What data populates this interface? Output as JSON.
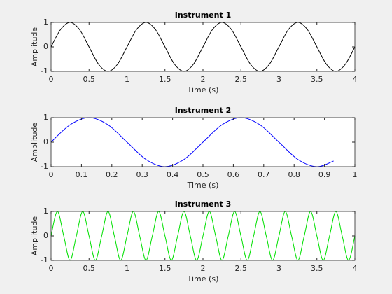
{
  "chart_data": [
    {
      "type": "line",
      "title": "Instrument 1",
      "xlabel": "Time (s)",
      "ylabel": "Amplitude",
      "color": "#000000",
      "x": [
        0,
        0.125,
        0.25,
        0.375,
        0.5,
        0.625,
        0.75,
        0.875,
        1,
        1.125,
        1.25,
        1.375,
        1.5,
        1.625,
        1.75,
        1.875,
        2,
        2.125,
        2.25,
        2.375,
        2.5,
        2.625,
        2.75,
        2.875,
        3,
        3.125,
        3.25,
        3.375,
        3.5,
        3.625,
        3.75,
        3.875,
        4
      ],
      "values": [
        0,
        0.707,
        1,
        0.707,
        0,
        -0.707,
        -1,
        -0.707,
        0,
        0.707,
        1,
        0.707,
        0,
        -0.707,
        -1,
        -0.707,
        0,
        0.707,
        1,
        0.707,
        0,
        -0.707,
        -1,
        -0.707,
        0,
        0.707,
        1,
        0.707,
        0,
        -0.707,
        -1,
        -0.707,
        0
      ],
      "xlim": [
        0,
        4
      ],
      "xticks": [
        0,
        0.5,
        1,
        1.5,
        2,
        2.5,
        3,
        3.5,
        4
      ],
      "ylim": [
        -1,
        1
      ],
      "yticks": [
        -1,
        0,
        1
      ]
    },
    {
      "type": "line",
      "title": "Instrument 2",
      "xlabel": "Time (s)",
      "ylabel": "Amplitude",
      "color": "#0000ff",
      "x": [
        0,
        0.0625,
        0.125,
        0.1875,
        0.25,
        0.3125,
        0.375,
        0.4375,
        0.5,
        0.5625,
        0.625,
        0.6875,
        0.75,
        0.8125,
        0.875,
        0.93
      ],
      "values": [
        0,
        0.707,
        1,
        0.707,
        0,
        -0.707,
        -1,
        -0.707,
        0,
        0.707,
        1,
        0.707,
        0,
        -0.707,
        -1,
        -0.77
      ],
      "xlim": [
        0,
        1
      ],
      "xticks": [
        0,
        0.1,
        0.2,
        0.3,
        0.4,
        0.5,
        0.6,
        0.7,
        0.8,
        0.9,
        1
      ],
      "ylim": [
        -1,
        1
      ],
      "yticks": [
        -1,
        0,
        1
      ]
    },
    {
      "type": "line",
      "title": "Instrument 3",
      "xlabel": "Time (s)",
      "ylabel": "Amplitude",
      "color": "#00e000",
      "x": [
        0,
        0.0833,
        0.1667,
        0.25,
        0.3333,
        0.4167,
        0.5,
        0.5833,
        0.6667,
        0.75,
        0.8333,
        0.9167,
        1,
        1.0833,
        1.1667,
        1.25,
        1.3333,
        1.4167,
        1.5,
        1.5833,
        1.6667,
        1.75,
        1.8333,
        1.9167,
        2,
        2.0833,
        2.1667,
        2.25,
        2.3333,
        2.4167,
        2.5,
        2.5833,
        2.6667,
        2.75,
        2.8333,
        2.9167,
        3,
        3.0833,
        3.1667,
        3.25,
        3.3333,
        3.4167,
        3.5,
        3.5833,
        3.6667,
        3.75,
        3.8333,
        3.9167,
        4
      ],
      "values": [
        0,
        1,
        0,
        -1,
        0,
        1,
        0,
        -1,
        0,
        1,
        0,
        -1,
        0,
        1,
        0,
        -1,
        0,
        1,
        0,
        -1,
        0,
        1,
        0,
        -1,
        0,
        1,
        0,
        -1,
        0,
        1,
        0,
        -1,
        0,
        1,
        0,
        -1,
        0,
        1,
        0,
        -1,
        0,
        1,
        0,
        -1,
        0,
        1,
        0,
        -1,
        0
      ],
      "xlim": [
        0,
        4
      ],
      "xticks": [
        0,
        0.5,
        1,
        1.5,
        2,
        2.5,
        3,
        3.5,
        4
      ],
      "ylim": [
        -1,
        1
      ],
      "yticks": [
        -1,
        0,
        1
      ]
    }
  ]
}
